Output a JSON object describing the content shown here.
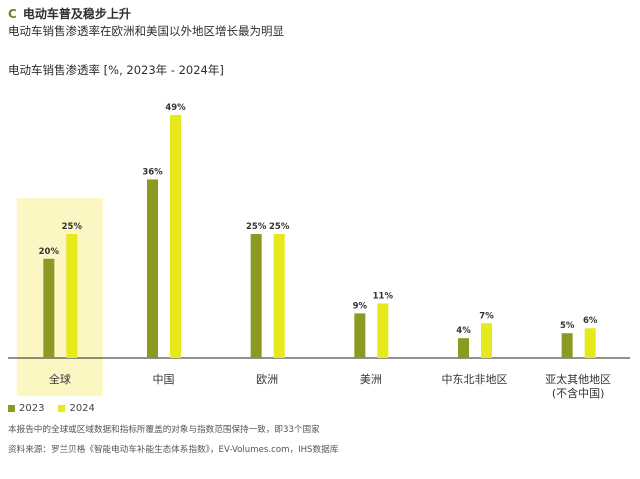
{
  "header": {
    "letter": "C",
    "title": "电动车普及稳步上升",
    "subtitle": "电动车销售渗透率在欧洲和美国以外地区增长最为明显"
  },
  "chart_data": {
    "type": "bar",
    "title": "电动车销售渗透率 [%, 2023年 - 2024年]",
    "categories": [
      "全球",
      "中国",
      "欧洲",
      "美洲",
      "中东北非地区",
      "亚太其他地区\n(不含中国)"
    ],
    "series": [
      {
        "name": "2023",
        "values": [
          20,
          36,
          25,
          9,
          4,
          5
        ],
        "color": "#8c9a23"
      },
      {
        "name": "2024",
        "values": [
          25,
          49,
          25,
          11,
          7,
          6
        ],
        "color": "#e6ea1c"
      }
    ],
    "value_suffix": "%",
    "ylim": [
      0,
      50
    ],
    "highlight_category": "全球",
    "highlight_color": "#fbf6c2",
    "grid": false,
    "legend_position": "bottom-left"
  },
  "footnotes": {
    "note": "本报告中的全球或区域数据和指标所覆盖的对象与指数范围保持一致，即33个国家",
    "source": "资料来源：罗兰贝格《智能电动车补能生态体系指数》，EV-Volumes.com，IHS数据库"
  }
}
